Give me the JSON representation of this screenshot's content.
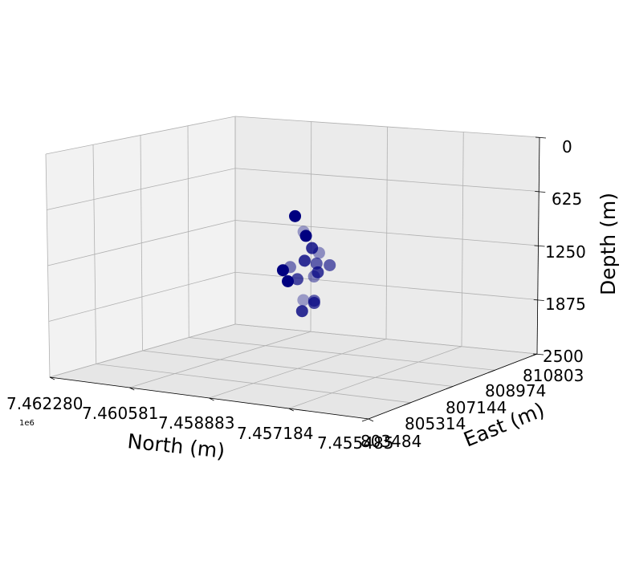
{
  "chart_data": {
    "type": "scatter",
    "projection": "3d",
    "colors": {
      "marker": "#000080",
      "pane_light": "#f2f2f2",
      "pane_mid": "#ebebeb",
      "pane_floor": "#e6e6e6",
      "grid": "#b0b0b0"
    },
    "axes": {
      "north": {
        "label": "North (m)",
        "ticks": [
          "7.462280",
          "7.460581",
          "7.458883",
          "7.457184",
          "7.455485"
        ],
        "offset_text": "1e6",
        "range": [
          7.455485,
          7.46228
        ]
      },
      "east": {
        "label": "East (m)",
        "ticks": [
          "803484",
          "805314",
          "807144",
          "808974",
          "810803"
        ],
        "range": [
          803484,
          810803
        ]
      },
      "depth": {
        "label": "Depth (m)",
        "ticks": [
          "0",
          "625",
          "1250",
          "1875",
          "2500"
        ],
        "range": [
          0,
          2500
        ],
        "inverted": true
      }
    },
    "grid": true,
    "points": [
      {
        "north": 7.45895,
        "east": 807000,
        "depth": 670,
        "alpha": 1.0
      },
      {
        "north": 7.45885,
        "east": 807150,
        "depth": 880,
        "alpha": 0.35
      },
      {
        "north": 7.4588,
        "east": 807150,
        "depth": 930,
        "alpha": 1.0
      },
      {
        "north": 7.45875,
        "east": 807300,
        "depth": 1100,
        "alpha": 0.8
      },
      {
        "north": 7.4586,
        "east": 807300,
        "depth": 1150,
        "alpha": 0.4
      },
      {
        "north": 7.4588,
        "east": 807100,
        "depth": 1250,
        "alpha": 0.8
      },
      {
        "north": 7.4586,
        "east": 807200,
        "depth": 1280,
        "alpha": 0.6
      },
      {
        "north": 7.4584,
        "east": 807350,
        "depth": 1300,
        "alpha": 0.6
      },
      {
        "north": 7.459,
        "east": 806900,
        "depth": 1330,
        "alpha": 0.5
      },
      {
        "north": 7.4591,
        "east": 806800,
        "depth": 1370,
        "alpha": 1.0
      },
      {
        "north": 7.4586,
        "east": 807250,
        "depth": 1400,
        "alpha": 0.75
      },
      {
        "north": 7.4586,
        "east": 807100,
        "depth": 1440,
        "alpha": 0.45
      },
      {
        "north": 7.4589,
        "east": 807000,
        "depth": 1490,
        "alpha": 0.7
      },
      {
        "north": 7.45905,
        "east": 806900,
        "depth": 1520,
        "alpha": 1.0
      },
      {
        "north": 7.4588,
        "east": 807050,
        "depth": 1760,
        "alpha": 0.35
      },
      {
        "north": 7.45865,
        "east": 807200,
        "depth": 1770,
        "alpha": 0.6
      },
      {
        "north": 7.45865,
        "east": 807200,
        "depth": 1800,
        "alpha": 0.7
      },
      {
        "north": 7.4588,
        "east": 807000,
        "depth": 1900,
        "alpha": 0.8
      }
    ]
  }
}
